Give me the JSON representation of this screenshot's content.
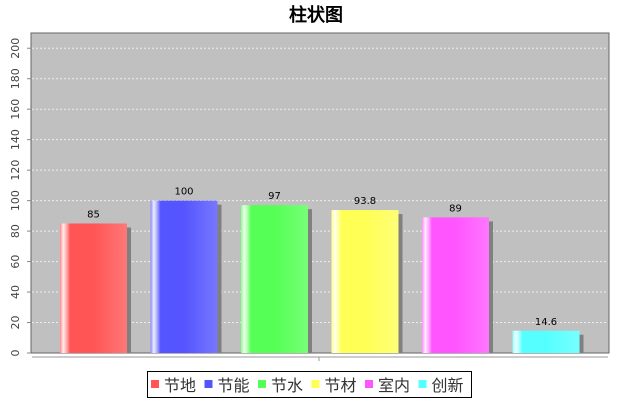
{
  "chart_data": {
    "type": "bar",
    "title": "柱状图",
    "xlabel": "",
    "ylabel": "",
    "categories": [
      "节地",
      "节能",
      "节水",
      "节材",
      "室内",
      "创新"
    ],
    "values": [
      85,
      100,
      97,
      93.8,
      89,
      14.6
    ],
    "data_labels": [
      "85",
      "100",
      "97",
      "93.8",
      "89",
      "14.6"
    ],
    "colors": [
      "#ff5555",
      "#5555ff",
      "#55ff55",
      "#ffff55",
      "#ff55ff",
      "#55ffff"
    ],
    "ylim": [
      0,
      210
    ],
    "yticks": [
      0,
      20,
      40,
      60,
      80,
      100,
      120,
      140,
      160,
      180,
      200
    ],
    "grid": true,
    "legend_position": "bottom",
    "plot_background": "#c0c0c0"
  }
}
